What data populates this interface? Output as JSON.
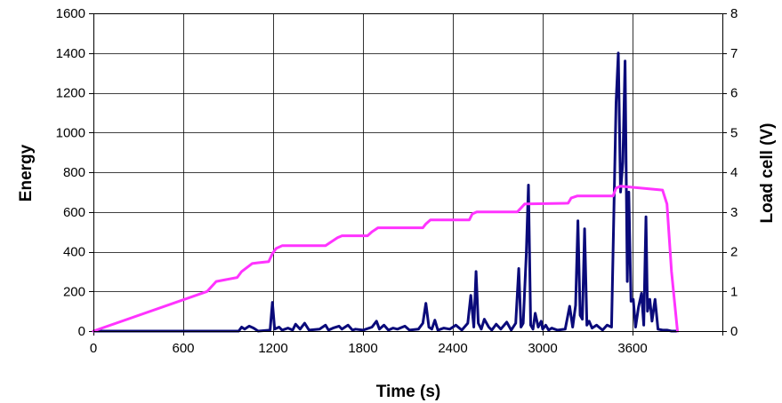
{
  "chart_data": {
    "type": "line",
    "title": "",
    "xlabel": "Time (s)",
    "ylabel": "Energy",
    "y2label": "Load cell (V)",
    "xlim": [
      0,
      4200
    ],
    "ylim": [
      0,
      1600
    ],
    "y2lim": [
      0,
      8
    ],
    "x_ticks": [
      0,
      600,
      1200,
      1800,
      2400,
      3000,
      3600
    ],
    "y_ticks": [
      0,
      200,
      400,
      600,
      800,
      1000,
      1200,
      1400,
      1600
    ],
    "y2_ticks": [
      0,
      1,
      2,
      3,
      4,
      5,
      6,
      7,
      8
    ],
    "grid": true,
    "legend": "none",
    "series": [
      {
        "axis": "left",
        "color": "#0a0a7a",
        "x": [
          0,
          970,
          990,
          1010,
          1040,
          1070,
          1100,
          1180,
          1195,
          1210,
          1240,
          1260,
          1300,
          1330,
          1350,
          1380,
          1410,
          1440,
          1510,
          1550,
          1570,
          1600,
          1640,
          1660,
          1700,
          1730,
          1750,
          1800,
          1860,
          1890,
          1910,
          1940,
          1970,
          2000,
          2030,
          2080,
          2110,
          2170,
          2200,
          2220,
          2240,
          2260,
          2280,
          2300,
          2340,
          2380,
          2420,
          2460,
          2500,
          2520,
          2540,
          2555,
          2570,
          2590,
          2610,
          2640,
          2660,
          2690,
          2720,
          2760,
          2790,
          2820,
          2840,
          2855,
          2870,
          2890,
          2905,
          2920,
          2935,
          2950,
          2970,
          2990,
          3000,
          3020,
          3040,
          3060,
          3080,
          3100,
          3150,
          3180,
          3200,
          3220,
          3235,
          3250,
          3265,
          3280,
          3295,
          3310,
          3330,
          3360,
          3400,
          3430,
          3460,
          3490,
          3505,
          3520,
          3535,
          3550,
          3565,
          3575,
          3590,
          3605,
          3620,
          3640,
          3660,
          3675,
          3690,
          3700,
          3715,
          3730,
          3750,
          3770,
          3800,
          3830,
          3860,
          3880,
          3900
        ],
        "y": [
          0,
          0,
          20,
          10,
          25,
          15,
          0,
          5,
          145,
          10,
          20,
          5,
          15,
          5,
          35,
          10,
          40,
          5,
          10,
          30,
          5,
          15,
          25,
          10,
          30,
          5,
          10,
          5,
          20,
          50,
          10,
          30,
          5,
          15,
          10,
          25,
          5,
          10,
          40,
          140,
          20,
          10,
          55,
          5,
          15,
          10,
          30,
          5,
          40,
          180,
          20,
          300,
          40,
          10,
          60,
          20,
          5,
          35,
          10,
          45,
          5,
          40,
          315,
          20,
          40,
          380,
          735,
          30,
          10,
          90,
          20,
          50,
          10,
          30,
          5,
          15,
          10,
          5,
          10,
          125,
          20,
          130,
          555,
          80,
          60,
          515,
          30,
          50,
          15,
          30,
          5,
          30,
          20,
          1150,
          1400,
          700,
          850,
          1360,
          250,
          700,
          150,
          160,
          20,
          120,
          190,
          30,
          575,
          100,
          160,
          50,
          160,
          10,
          5,
          5,
          0,
          0,
          0
        ]
      },
      {
        "axis": "right",
        "color": "#ff33ff",
        "x": [
          0,
          760,
          820,
          960,
          990,
          1060,
          1100,
          1170,
          1195,
          1220,
          1260,
          1550,
          1590,
          1630,
          1660,
          1830,
          1860,
          1880,
          1900,
          2200,
          2220,
          2250,
          2510,
          2530,
          2560,
          2830,
          2850,
          2880,
          3170,
          3190,
          3230,
          3470,
          3490,
          3520,
          3800,
          3830,
          3860,
          3900
        ],
        "y": [
          0,
          1.0,
          1.25,
          1.35,
          1.5,
          1.7,
          1.72,
          1.75,
          1.95,
          2.08,
          2.15,
          2.15,
          2.25,
          2.35,
          2.4,
          2.4,
          2.5,
          2.55,
          2.6,
          2.6,
          2.7,
          2.8,
          2.8,
          2.95,
          3.0,
          3.0,
          3.08,
          3.2,
          3.22,
          3.35,
          3.4,
          3.4,
          3.6,
          3.65,
          3.55,
          3.2,
          1.5,
          0
        ]
      }
    ]
  }
}
